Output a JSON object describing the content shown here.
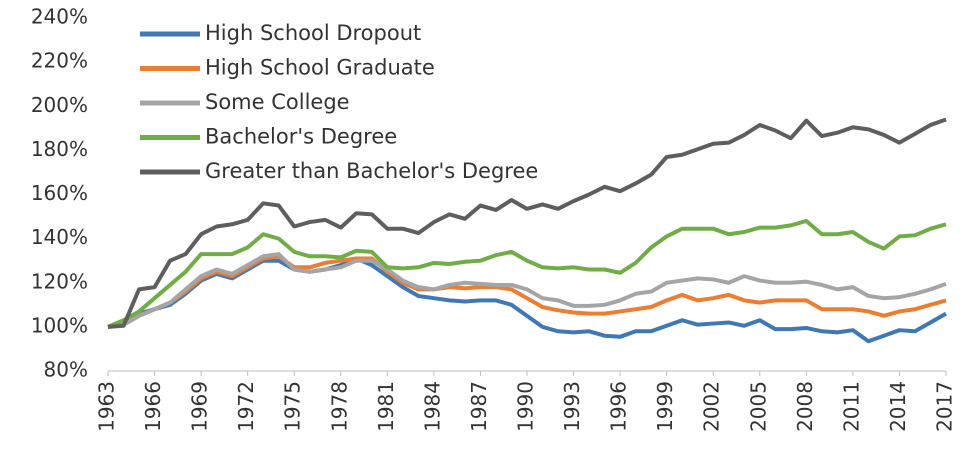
{
  "chart_data": {
    "type": "line",
    "x": [
      1963,
      1964,
      1965,
      1966,
      1967,
      1968,
      1969,
      1970,
      1971,
      1972,
      1973,
      1974,
      1975,
      1976,
      1977,
      1978,
      1979,
      1980,
      1981,
      1982,
      1983,
      1984,
      1985,
      1986,
      1987,
      1988,
      1989,
      1990,
      1991,
      1992,
      1993,
      1994,
      1995,
      1996,
      1997,
      1998,
      1999,
      2000,
      2001,
      2002,
      2003,
      2004,
      2005,
      2006,
      2007,
      2008,
      2009,
      2010,
      2011,
      2012,
      2013,
      2014,
      2015,
      2016,
      2017
    ],
    "series": [
      {
        "name": "High School Dropout",
        "color": "#3f78b5",
        "values": [
          100,
          101,
          106,
          108,
          110,
          115,
          121,
          124,
          122,
          126,
          130,
          130,
          126,
          125,
          126,
          128,
          131,
          128,
          123,
          118,
          114,
          113,
          112,
          111.5,
          112,
          112,
          110,
          105,
          100,
          98,
          97.5,
          98,
          96,
          95.5,
          98,
          98,
          100.5,
          103,
          101,
          101.5,
          102,
          100.5,
          103,
          99,
          99,
          99.5,
          98,
          97.5,
          98.5,
          93.5,
          96,
          98.5,
          98,
          102,
          106
        ]
      },
      {
        "name": "High School Graduate",
        "color": "#ed7d31",
        "values": [
          100,
          101,
          105,
          108,
          111,
          116,
          122,
          125,
          123,
          127,
          131,
          132,
          127,
          127,
          129,
          130,
          131,
          131,
          125,
          120,
          117,
          117,
          118,
          117.5,
          118,
          118,
          117,
          113,
          109,
          107.5,
          106.5,
          106,
          106,
          107,
          108,
          109,
          112,
          114.5,
          112,
          113,
          114.5,
          112,
          111,
          112,
          112,
          112,
          108,
          108,
          108,
          107,
          105,
          107,
          108,
          110,
          112
        ]
      },
      {
        "name": "Some College",
        "color": "#a5a5a5",
        "values": [
          100,
          101,
          105,
          108,
          111,
          117,
          123,
          126,
          124,
          128,
          132,
          133,
          126,
          125,
          126,
          127,
          130,
          130,
          126,
          121,
          118,
          117,
          119,
          120,
          119.5,
          119,
          119,
          117,
          113,
          112,
          109.5,
          109.5,
          110,
          112,
          115,
          116,
          120,
          121,
          122,
          121.5,
          120,
          123,
          121,
          120,
          120,
          120.5,
          119,
          117,
          118,
          114,
          113,
          113.5,
          115,
          117,
          119.5
        ]
      },
      {
        "name": "Bachelor's Degree",
        "color": "#70ad47",
        "values": [
          100,
          103,
          107,
          113,
          119,
          125,
          133,
          133,
          133,
          136,
          142,
          140,
          134,
          132,
          132,
          131.5,
          134.5,
          134,
          127,
          126.5,
          127,
          129,
          128.5,
          129.5,
          130,
          132.5,
          134,
          130,
          127,
          126.5,
          127,
          126,
          126,
          124.5,
          129,
          136,
          141,
          144.5,
          144.5,
          144.5,
          142,
          143,
          145,
          145,
          146,
          148,
          142,
          142,
          143,
          138.5,
          135.5,
          141,
          141.5,
          144.5,
          146.5
        ]
      },
      {
        "name": "Greater than Bachelor's Degree",
        "color": "#5e5e5e",
        "values": [
          100,
          100.5,
          117,
          118,
          130,
          133,
          142,
          145.5,
          146.5,
          148.5,
          156,
          155,
          145.5,
          147.5,
          148.5,
          145,
          151.5,
          151,
          144.5,
          144.5,
          142.5,
          147.5,
          151,
          149,
          155,
          153,
          157.5,
          153.5,
          155.5,
          153.5,
          157,
          160,
          163.5,
          161.5,
          165,
          169,
          177,
          178,
          180.5,
          183,
          183.5,
          187,
          191.5,
          189,
          185.5,
          193.5,
          186.5,
          188,
          190.5,
          189.5,
          187,
          183.5,
          187.5,
          191.5,
          194
        ]
      }
    ],
    "xlim": [
      1963,
      2017
    ],
    "xticks": [
      1963,
      1966,
      1969,
      1972,
      1975,
      1978,
      1981,
      1984,
      1987,
      1990,
      1993,
      1996,
      1999,
      2002,
      2005,
      2008,
      2011,
      2014,
      2017
    ],
    "ylim": [
      80,
      240
    ],
    "yticks": [
      {
        "value": 80,
        "label": "80%"
      },
      {
        "value": 100,
        "label": "100%"
      },
      {
        "value": 120,
        "label": "120%"
      },
      {
        "value": 140,
        "label": "140%"
      },
      {
        "value": 160,
        "label": "160%"
      },
      {
        "value": 180,
        "label": "180%"
      },
      {
        "value": 200,
        "label": "200%"
      },
      {
        "value": 220,
        "label": "220%"
      },
      {
        "value": 240,
        "label": "240%"
      }
    ],
    "grid": false,
    "legend": "top-left"
  }
}
